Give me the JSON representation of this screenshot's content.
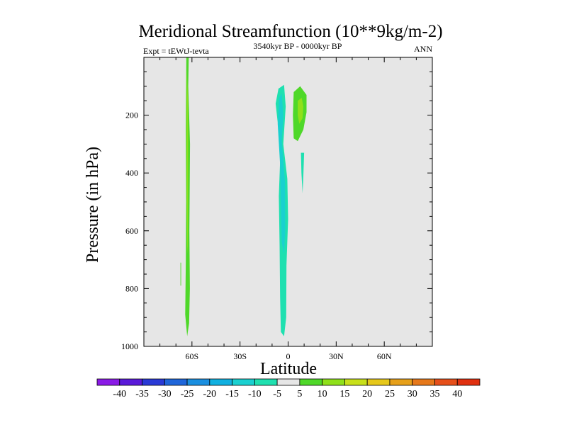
{
  "chart_data": {
    "type": "contour",
    "title": "Meridional Streamfunction (10**9kg/m-2)",
    "left_string": "Expt = tEWtJ-tevta",
    "center_string": "3540kyr BP - 0000kyr BP",
    "right_string": "ANN",
    "xlabel": "Latitude",
    "ylabel": "Pressure (in hPa)",
    "xlim": [
      -90,
      90
    ],
    "ylim": [
      1000,
      0
    ],
    "x_ticks": [
      {
        "value": -60,
        "label": "60S"
      },
      {
        "value": -30,
        "label": "30S"
      },
      {
        "value": 0,
        "label": "0"
      },
      {
        "value": 30,
        "label": "30N"
      },
      {
        "value": 60,
        "label": "60N"
      }
    ],
    "y_ticks": [
      {
        "value": 200,
        "label": "200"
      },
      {
        "value": 400,
        "label": "400"
      },
      {
        "value": 600,
        "label": "600"
      },
      {
        "value": 800,
        "label": "800"
      },
      {
        "value": 1000,
        "label": "1000"
      }
    ],
    "background_color": "#e6e6e6",
    "colorbar": {
      "levels": [
        "-40",
        "-35",
        "-30",
        "-25",
        "-20",
        "-15",
        "-10",
        "-5",
        "5",
        "10",
        "15",
        "20",
        "25",
        "30",
        "35",
        "40"
      ],
      "colors": [
        "#8a1ae6",
        "#5a1ad9",
        "#2a3ad6",
        "#1f66da",
        "#1a8fe0",
        "#10b0e0",
        "#1ad0d0",
        "#1fe0b0",
        "#e6e6e6",
        "#4fd829",
        "#8fe01a",
        "#c8e01a",
        "#e6c81a",
        "#e6a01a",
        "#e6781a",
        "#e64f1a",
        "#e0300f"
      ]
    },
    "regions": [
      {
        "name": "sh-positive-column",
        "level": "5",
        "points": [
          [
            -63.5,
            0
          ],
          [
            -62,
            0
          ],
          [
            -62.3,
            100
          ],
          [
            -61.2,
            300
          ],
          [
            -61.6,
            600
          ],
          [
            -61.3,
            800
          ],
          [
            -61.8,
            920
          ],
          [
            -63,
            965
          ],
          [
            -64.2,
            890
          ],
          [
            -63.8,
            700
          ],
          [
            -63.6,
            500
          ],
          [
            -63.8,
            250
          ]
        ]
      },
      {
        "name": "sh-positive-core",
        "level": "10",
        "points": [
          [
            -63.2,
            40
          ],
          [
            -62.5,
            150
          ],
          [
            -62.4,
            400
          ],
          [
            -62.6,
            650
          ],
          [
            -62.9,
            680
          ],
          [
            -63.2,
            500
          ],
          [
            -63.3,
            250
          ]
        ]
      },
      {
        "name": "sh-small-positive",
        "level": "5",
        "points": [
          [
            -67.2,
            710
          ],
          [
            -66.8,
            710
          ],
          [
            -66.8,
            790
          ],
          [
            -67.2,
            790
          ]
        ]
      },
      {
        "name": "equatorial-negative-column",
        "level": "-5",
        "points": [
          [
            -6,
            108
          ],
          [
            -2.5,
            95
          ],
          [
            -1.5,
            170
          ],
          [
            -3,
            300
          ],
          [
            -0.5,
            420
          ],
          [
            0,
            560
          ],
          [
            -1,
            720
          ],
          [
            -1.2,
            900
          ],
          [
            -2.5,
            965
          ],
          [
            -4.5,
            950
          ],
          [
            -5,
            830
          ],
          [
            -5.3,
            650
          ],
          [
            -5.8,
            480
          ],
          [
            -5,
            360
          ],
          [
            -5.8,
            260
          ],
          [
            -7.8,
            160
          ]
        ]
      },
      {
        "name": "equatorial-negative-core",
        "level": "-10",
        "points": [
          [
            -5.5,
            140
          ],
          [
            -4,
            125
          ],
          [
            -3,
            200
          ],
          [
            -4,
            290
          ],
          [
            -2,
            430
          ],
          [
            -1.8,
            600
          ],
          [
            -2.5,
            680
          ],
          [
            -4,
            640
          ],
          [
            -4.5,
            500
          ],
          [
            -5,
            370
          ],
          [
            -6.5,
            230
          ]
        ]
      },
      {
        "name": "nh-positive-cell",
        "level": "5",
        "points": [
          [
            3.5,
            120
          ],
          [
            7.5,
            100
          ],
          [
            11.5,
            130
          ],
          [
            11.5,
            190
          ],
          [
            9.5,
            250
          ],
          [
            6,
            290
          ],
          [
            3.5,
            280
          ],
          [
            3,
            200
          ]
        ]
      },
      {
        "name": "nh-positive-core",
        "level": "10",
        "points": [
          [
            6,
            150
          ],
          [
            8.5,
            140
          ],
          [
            9.5,
            170
          ],
          [
            9,
            210
          ],
          [
            7,
            230
          ],
          [
            6,
            200
          ]
        ]
      },
      {
        "name": "nh-negative-sliver",
        "level": "-5",
        "points": [
          [
            8,
            330
          ],
          [
            10,
            330
          ],
          [
            9.5,
            410
          ],
          [
            9,
            470
          ],
          [
            8.3,
            400
          ]
        ]
      }
    ]
  }
}
